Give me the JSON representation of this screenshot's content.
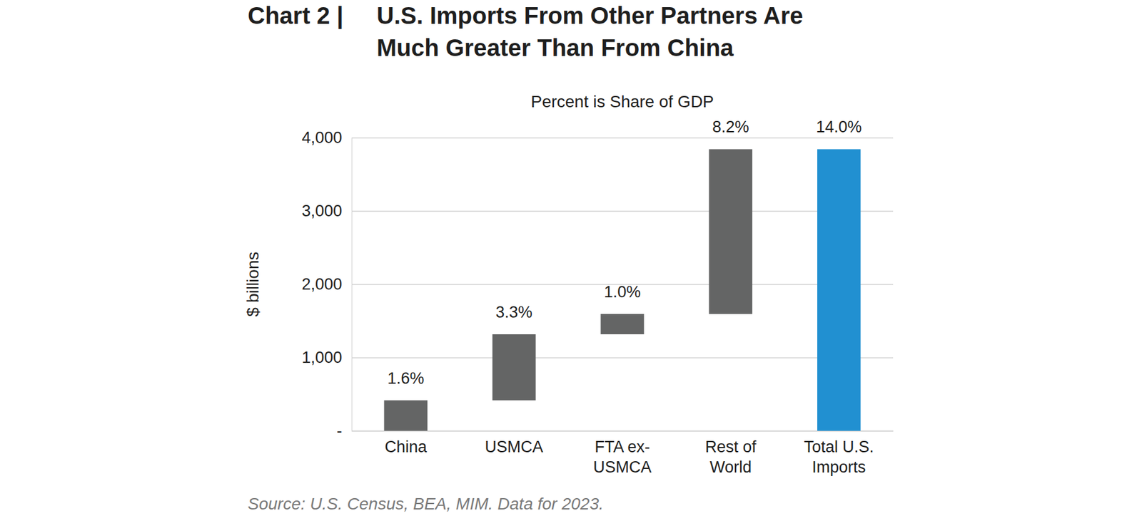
{
  "chart_data": {
    "type": "waterfall",
    "title_prefix": "Chart 2 | ",
    "title_lines": [
      "U.S. Imports From Other Partners Are",
      "Much Greater Than From China"
    ],
    "subtitle": "Percent is Share of GDP",
    "y_label": "$ billions",
    "source": "Source: U.S. Census, BEA, MIM. Data for 2023.",
    "categories": [
      "China",
      "USMCA",
      "FTA ex-\nUSMCA",
      "Rest of\nWorld",
      "Total U.S.\nImports"
    ],
    "values": [
      416,
      901,
      277,
      2248,
      3842
    ],
    "is_total": [
      false,
      false,
      false,
      false,
      true
    ],
    "gdp_share": [
      1.6,
      3.3,
      1.0,
      8.2,
      14.0
    ],
    "gdp_share_labels": [
      "1.6%",
      "3.3%",
      "1.0%",
      "8.2%",
      "14.0%"
    ],
    "colors": [
      "#646565",
      "#646565",
      "#646565",
      "#646565",
      "#2190d1"
    ],
    "ylim": [
      0,
      4000
    ],
    "yticks": [
      {
        "value": 0,
        "label": "-"
      },
      {
        "value": 1000,
        "label": "1,000"
      },
      {
        "value": 2000,
        "label": "2,000"
      },
      {
        "value": 3000,
        "label": "3,000"
      },
      {
        "value": 4000,
        "label": "4,000"
      }
    ],
    "grid": true
  }
}
